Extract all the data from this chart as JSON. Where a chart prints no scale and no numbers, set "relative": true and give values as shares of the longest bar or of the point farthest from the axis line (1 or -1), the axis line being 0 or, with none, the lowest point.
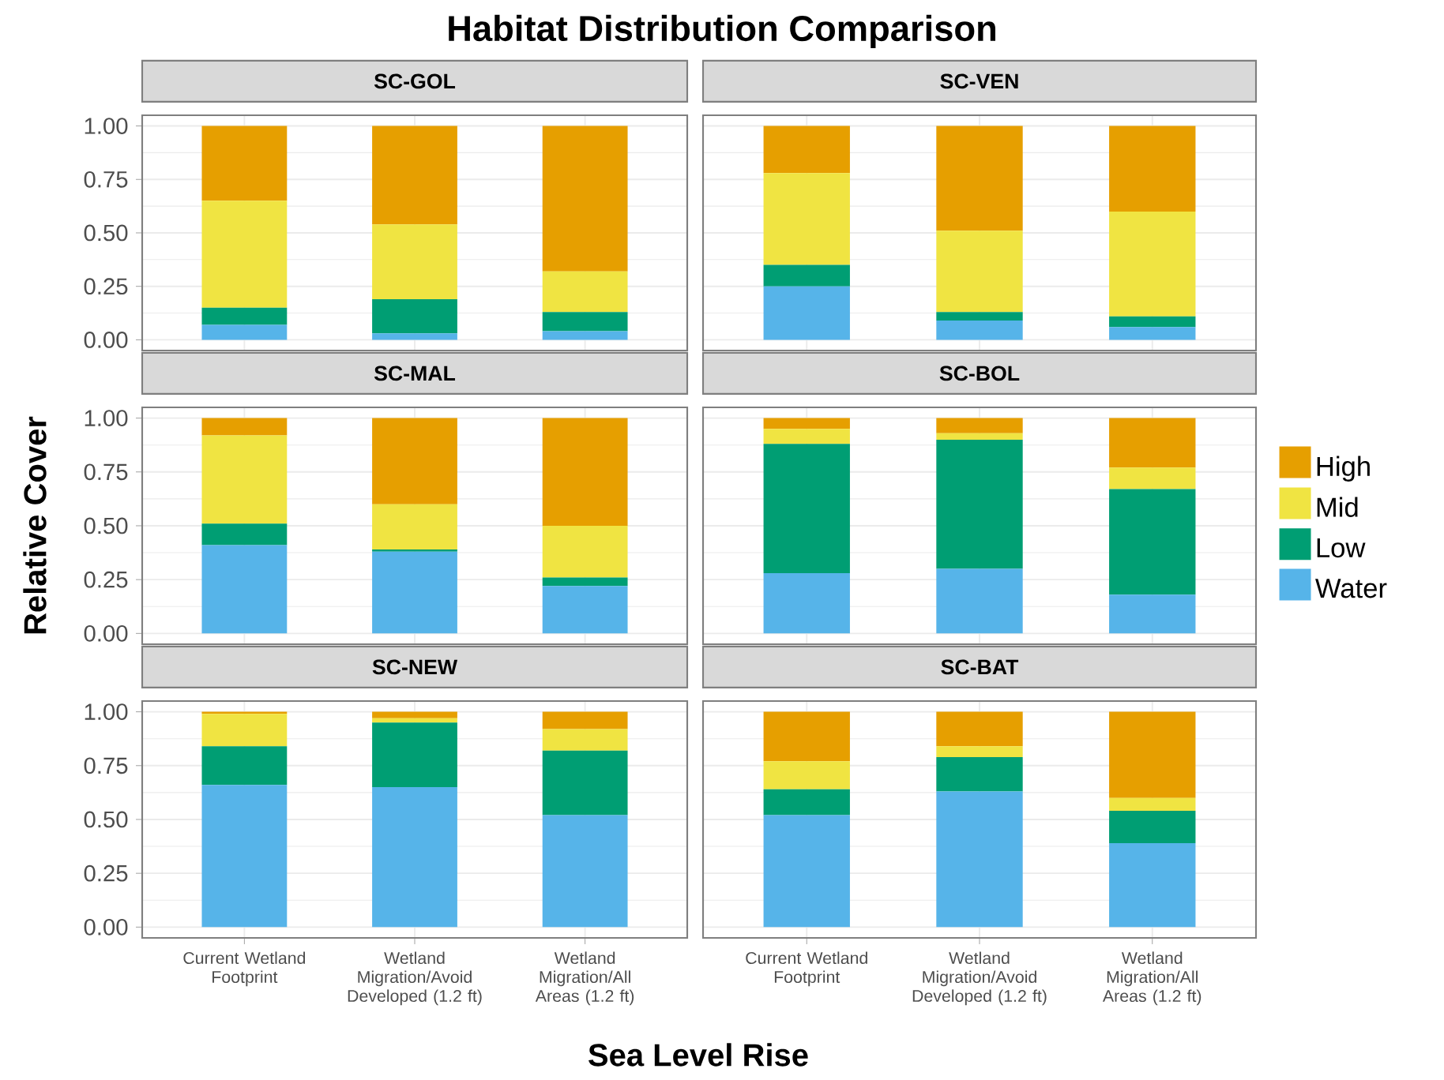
{
  "chart_data": [
    {
      "type": "bar",
      "title": "SC-GOL",
      "annotations": [
        "Habitat Distribution Comparison"
      ],
      "categories": [
        null,
        null,
        null
      ],
      "stacked": true,
      "grid": true,
      "tick_labels": "y",
      "ylim": [
        -0.05,
        1.05
      ],
      "yticks": [
        {
          "value": 0,
          "label": "0.00"
        },
        {
          "value": 0.25,
          "label": "0.25"
        },
        {
          "value": 0.5,
          "label": "0.50"
        },
        {
          "value": 0.75,
          "label": "0.75"
        },
        {
          "value": 1,
          "label": "1.00"
        }
      ],
      "series": [
        {
          "color": "#56b4e9",
          "values": [
            0.07,
            0.03,
            0.04
          ]
        },
        {
          "color": "#009e73",
          "values": [
            0.08,
            0.16,
            0.09
          ]
        },
        {
          "color": "#f0e442",
          "values": [
            0.5,
            0.35,
            0.19
          ]
        },
        {
          "color": "#e69f00",
          "values": [
            0.35,
            0.46,
            0.68
          ]
        }
      ]
    },
    {
      "type": "bar",
      "title": "SC-VEN",
      "categories": [
        null,
        null,
        null
      ],
      "stacked": true,
      "relative": true,
      "grid": true,
      "tick_labels": false,
      "series": [
        {
          "color": "#56b4e9",
          "values": [
            0.25,
            0.09,
            0.06
          ]
        },
        {
          "color": "#009e73",
          "values": [
            0.1,
            0.04,
            0.05
          ]
        },
        {
          "color": "#f0e442",
          "values": [
            0.43,
            0.38,
            0.49
          ]
        },
        {
          "color": "#e69f00",
          "values": [
            0.22,
            0.49,
            0.4
          ]
        }
      ]
    },
    {
      "type": "bar",
      "title": "SC-MAL",
      "ylabel": "Relative Cover",
      "categories": [
        null,
        null,
        null
      ],
      "stacked": true,
      "grid": true,
      "tick_labels": "y",
      "ylim": [
        -0.05,
        1.05
      ],
      "yticks": [
        {
          "value": 0,
          "label": "0.00"
        },
        {
          "value": 0.25,
          "label": "0.25"
        },
        {
          "value": 0.5,
          "label": "0.50"
        },
        {
          "value": 0.75,
          "label": "0.75"
        },
        {
          "value": 1,
          "label": "1.00"
        }
      ],
      "series": [
        {
          "color": "#56b4e9",
          "values": [
            0.41,
            0.38,
            0.22
          ]
        },
        {
          "color": "#009e73",
          "values": [
            0.1,
            0.01,
            0.04
          ]
        },
        {
          "color": "#f0e442",
          "values": [
            0.41,
            0.21,
            0.24
          ]
        },
        {
          "color": "#e69f00",
          "values": [
            0.08,
            0.4,
            0.5
          ]
        }
      ]
    },
    {
      "type": "bar",
      "title": "SC-BOL",
      "categories": [
        null,
        null,
        null
      ],
      "stacked": true,
      "relative": true,
      "grid": true,
      "tick_labels": false,
      "legend": "right",
      "series": [
        {
          "name": "Water",
          "color": "#56b4e9",
          "values": [
            0.28,
            0.3,
            0.18
          ]
        },
        {
          "name": "Low",
          "color": "#009e73",
          "values": [
            0.6,
            0.6,
            0.49
          ]
        },
        {
          "name": "Mid",
          "color": "#f0e442",
          "values": [
            0.07,
            0.03,
            0.1
          ]
        },
        {
          "name": "High",
          "color": "#e69f00",
          "values": [
            0.05,
            0.07,
            0.23
          ]
        }
      ]
    },
    {
      "type": "bar",
      "title": "SC-NEW",
      "xlabel": "Sea Level Rise",
      "categories": [
        "Current Wetland Footprint",
        "Wetland Migration/Avoid Developed (1.2 ft)",
        "Wetland Migration/All Areas (1.2 ft)"
      ],
      "stacked": true,
      "grid": true,
      "ylim": [
        -0.05,
        1.05
      ],
      "yticks": [
        {
          "value": 0,
          "label": "0.00"
        },
        {
          "value": 0.25,
          "label": "0.25"
        },
        {
          "value": 0.5,
          "label": "0.50"
        },
        {
          "value": 0.75,
          "label": "0.75"
        },
        {
          "value": 1,
          "label": "1.00"
        }
      ],
      "series": [
        {
          "color": "#56b4e9",
          "values": [
            0.66,
            0.65,
            0.52
          ]
        },
        {
          "color": "#009e73",
          "values": [
            0.18,
            0.3,
            0.3
          ]
        },
        {
          "color": "#f0e442",
          "values": [
            0.15,
            0.02,
            0.1
          ]
        },
        {
          "color": "#e69f00",
          "values": [
            0.01,
            0.03,
            0.08
          ]
        }
      ]
    },
    {
      "type": "bar",
      "title": "SC-BAT",
      "categories": [
        "Current Wetland Footprint",
        "Wetland Migration/Avoid Developed (1.2 ft)",
        "Wetland Migration/All Areas (1.2 ft)"
      ],
      "stacked": true,
      "relative": true,
      "grid": true,
      "tick_labels": "x",
      "series": [
        {
          "color": "#56b4e9",
          "values": [
            0.52,
            0.63,
            0.39
          ]
        },
        {
          "color": "#009e73",
          "values": [
            0.12,
            0.16,
            0.15
          ]
        },
        {
          "color": "#f0e442",
          "values": [
            0.13,
            0.05,
            0.06
          ]
        },
        {
          "color": "#e69f00",
          "values": [
            0.23,
            0.16,
            0.4
          ]
        }
      ]
    }
  ]
}
